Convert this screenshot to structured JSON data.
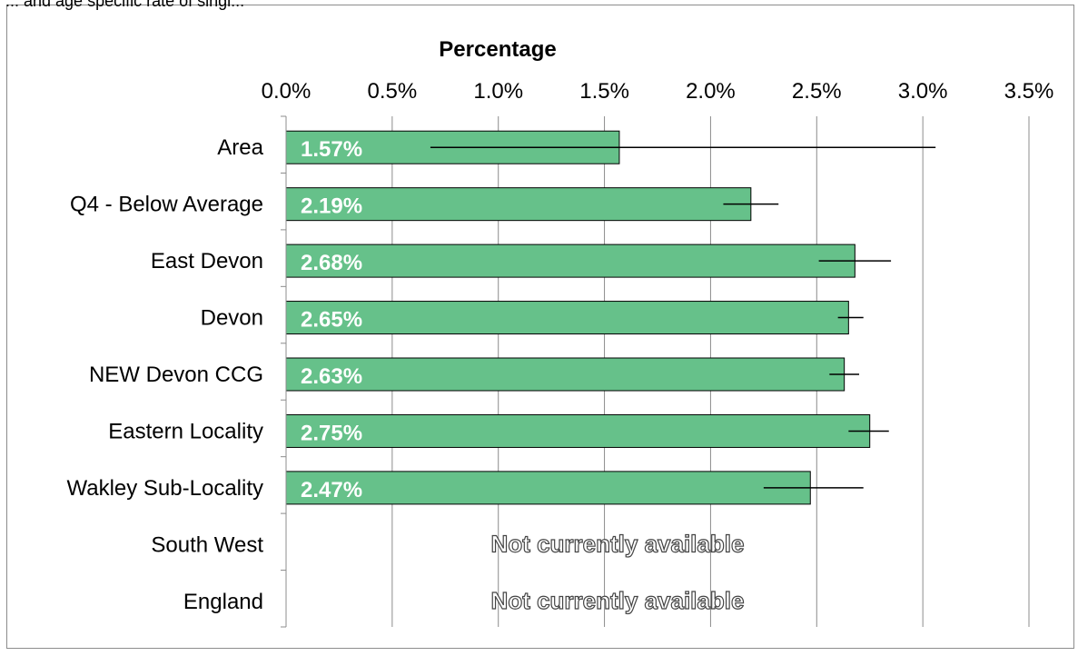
{
  "header": {
    "truncated_text": "... and age specific rate of singl..."
  },
  "chart_data": {
    "type": "bar",
    "orientation": "horizontal",
    "title": "Percentage",
    "xlim": [
      0,
      3.5
    ],
    "tick_values": [
      0,
      0.5,
      1.0,
      1.5,
      2.0,
      2.5,
      3.0,
      3.5
    ],
    "tick_labels": [
      "0.0%",
      "0.5%",
      "1.0%",
      "1.5%",
      "2.0%",
      "2.5%",
      "3.0%",
      "3.5%"
    ],
    "grid": true,
    "bar_color": "#66c18a",
    "categories": [
      "Area",
      "Q4 - Below Average",
      "East Devon",
      "Devon",
      "NEW Devon CCG",
      "Eastern Locality",
      "Wakley Sub-Locality",
      "South West",
      "England"
    ],
    "values": [
      1.57,
      2.19,
      2.68,
      2.65,
      2.63,
      2.75,
      2.47,
      null,
      null
    ],
    "value_labels": [
      "1.57%",
      "2.19%",
      "2.68%",
      "2.65%",
      "2.63%",
      "2.75%",
      "2.47%",
      null,
      null
    ],
    "error_low": [
      0.68,
      2.06,
      2.51,
      2.6,
      2.56,
      2.65,
      2.25,
      null,
      null
    ],
    "error_high": [
      3.06,
      2.32,
      2.85,
      2.72,
      2.7,
      2.84,
      2.72,
      null,
      null
    ],
    "unavailable_label": "Not currently available"
  }
}
